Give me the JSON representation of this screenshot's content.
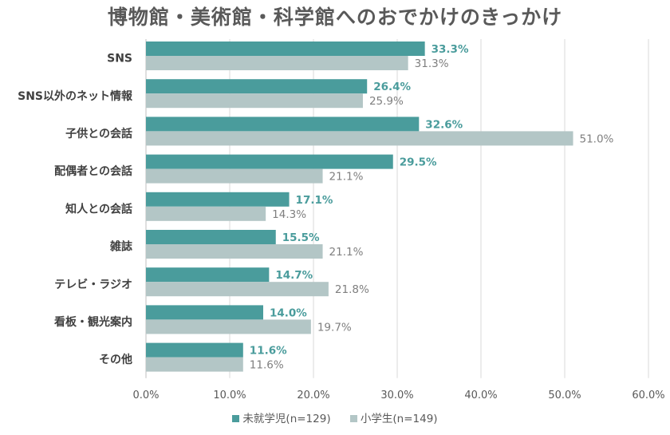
{
  "chart_data": {
    "type": "bar",
    "orientation": "horizontal",
    "title": "博物館・美術館・科学館へのおでかけのきっかけ",
    "categories": [
      "SNS",
      "SNS以外のネット情報",
      "子供との会話",
      "配偶者との会話",
      "知人との会話",
      "雑誌",
      "テレビ・ラジオ",
      "看板・観光案内",
      "その他"
    ],
    "series": [
      {
        "name": "未就学児(n=129)",
        "color": "#4a9c9c",
        "values": [
          33.3,
          26.4,
          32.6,
          29.5,
          17.1,
          15.5,
          14.7,
          14.0,
          11.6
        ],
        "labels": [
          "33.3%",
          "26.4%",
          "32.6%",
          "29.5%",
          "17.1%",
          "15.5%",
          "14.7%",
          "14.0%",
          "11.6%"
        ]
      },
      {
        "name": "小学生(n=149)",
        "color": "#b3c6c6",
        "values": [
          31.3,
          25.9,
          51.0,
          21.1,
          14.3,
          21.1,
          21.8,
          19.7,
          11.6
        ],
        "labels": [
          "31.3%",
          "25.9%",
          "51.0%",
          "21.1%",
          "14.3%",
          "21.1%",
          "21.8%",
          "19.7%",
          "11.6%"
        ]
      }
    ],
    "xlim": [
      0,
      60
    ],
    "xticks": [
      "0.0%",
      "10.0%",
      "20.0%",
      "30.0%",
      "40.0%",
      "50.0%",
      "60.0%"
    ],
    "xlabel": "",
    "ylabel": "",
    "grid": true,
    "legend": "bottom-center"
  }
}
